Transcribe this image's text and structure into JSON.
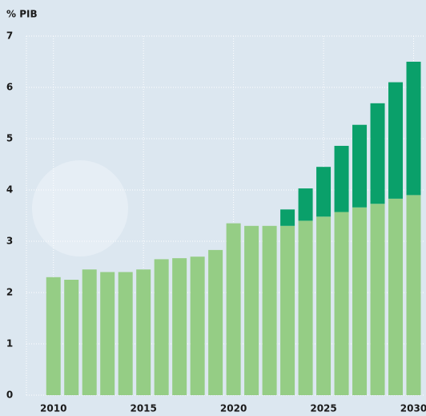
{
  "chart_data": {
    "type": "stacked-bar",
    "y_label": "% PIB",
    "x": [
      2010,
      2011,
      2012,
      2013,
      2014,
      2015,
      2016,
      2017,
      2018,
      2019,
      2020,
      2021,
      2022,
      2023,
      2024,
      2025,
      2026,
      2027,
      2028,
      2029,
      2030
    ],
    "series": [
      {
        "color": "#95cd85",
        "values": [
          2.3,
          2.25,
          2.45,
          2.4,
          2.4,
          2.45,
          2.65,
          2.67,
          2.7,
          2.83,
          3.35,
          3.3,
          3.3,
          3.3,
          3.4,
          3.48,
          3.57,
          3.66,
          3.73,
          3.83,
          3.9
        ]
      },
      {
        "color": "#0aa06a",
        "values": [
          null,
          null,
          null,
          null,
          null,
          null,
          null,
          null,
          null,
          null,
          null,
          null,
          null,
          0.32,
          0.63,
          0.97,
          1.29,
          1.61,
          1.96,
          2.27,
          2.6
        ]
      }
    ],
    "xlim": [
      2008.5,
      2030.6
    ],
    "xticks": [
      2010,
      2015,
      2020,
      2025,
      2030
    ],
    "ylim": [
      0,
      7
    ],
    "yticks": [
      0,
      1,
      2,
      3,
      4,
      5,
      6,
      7
    ],
    "grid": true
  }
}
